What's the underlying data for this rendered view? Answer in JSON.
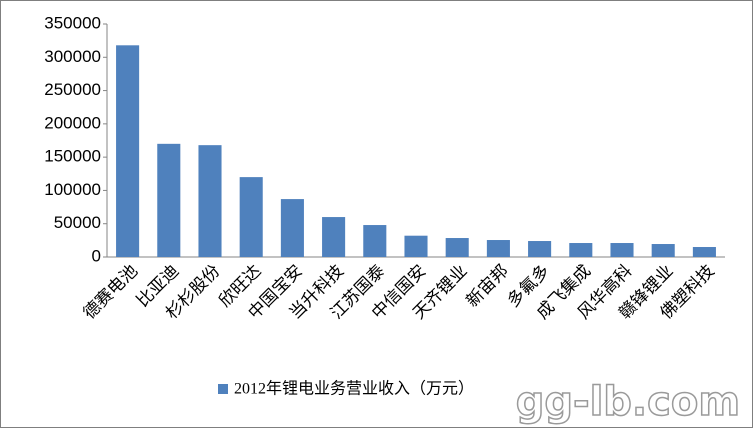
{
  "chart_data": {
    "type": "bar",
    "categories": [
      "德赛电池",
      "比亚迪",
      "杉杉股份",
      "欣旺达",
      "中国宝安",
      "当升科技",
      "江苏国泰",
      "中信国安",
      "天齐锂业",
      "新宙邦",
      "多氟多",
      "成飞集成",
      "风华高科",
      "赣锋锂业",
      "佛塑科技"
    ],
    "series": [
      {
        "name": "2012年锂电业务营业收入（万元）",
        "color": "#4f81bd",
        "values": [
          318000,
          170000,
          168000,
          120000,
          87000,
          60000,
          48000,
          32000,
          28500,
          25500,
          24000,
          21000,
          21000,
          19500,
          15000
        ]
      }
    ],
    "ylim": [
      0,
      350000
    ],
    "yticks": [
      0,
      50000,
      100000,
      150000,
      200000,
      250000,
      300000,
      350000
    ],
    "grid": false,
    "legend": "bottom",
    "watermark": "gg-lb.com"
  }
}
